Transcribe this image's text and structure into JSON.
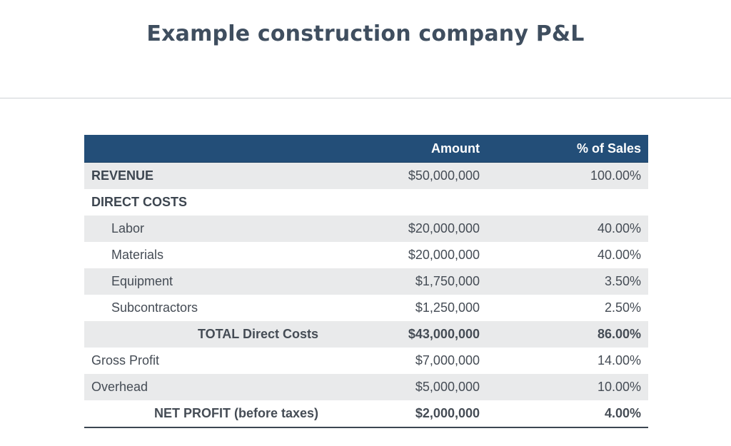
{
  "title": "Example construction company P&L",
  "table": {
    "headers": {
      "label": "",
      "amount": "Amount",
      "pct": "% of Sales"
    },
    "rows": [
      {
        "label": "REVENUE",
        "amount": "$50,000,000",
        "pct": "100.00%"
      },
      {
        "label": "DIRECT COSTS",
        "amount": "",
        "pct": ""
      },
      {
        "label": "Labor",
        "amount": "$20,000,000",
        "pct": "40.00%"
      },
      {
        "label": "Materials",
        "amount": "$20,000,000",
        "pct": "40.00%"
      },
      {
        "label": "Equipment",
        "amount": "$1,750,000",
        "pct": "3.50%"
      },
      {
        "label": "Subcontractors",
        "amount": "$1,250,000",
        "pct": "2.50%"
      },
      {
        "label": "TOTAL Direct Costs",
        "amount": "$43,000,000",
        "pct": "86.00%"
      },
      {
        "label": "Gross Profit",
        "amount": "$7,000,000",
        "pct": "14.00%"
      },
      {
        "label": "Overhead",
        "amount": "$5,000,000",
        "pct": "10.00%"
      },
      {
        "label": "NET PROFIT (before taxes)",
        "amount": "$2,000,000",
        "pct": "4.00%"
      }
    ]
  },
  "colors": {
    "header_bg": "#234e78",
    "shade": "#e9eaeb",
    "title": "#3f4e5f"
  }
}
